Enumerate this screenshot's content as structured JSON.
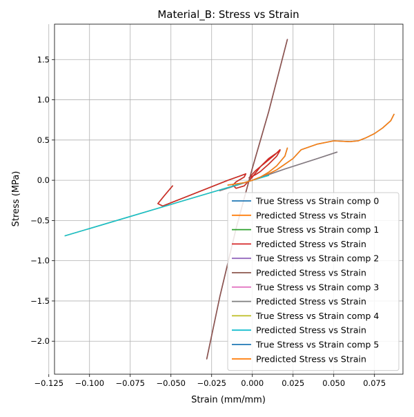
{
  "chart_data": {
    "type": "line",
    "title": "Material_B: Stress vs Strain",
    "xlabel": "Strain (mm/mm)",
    "ylabel": "Stress (MPa)",
    "xlim": [
      -0.1215,
      0.0925
    ],
    "ylim": [
      -2.41,
      1.94
    ],
    "xticks": [
      -0.125,
      -0.1,
      -0.075,
      -0.05,
      -0.025,
      0.0,
      0.025,
      0.05,
      0.075
    ],
    "xtick_labels": [
      "−0.125",
      "−0.100",
      "−0.075",
      "−0.050",
      "−0.025",
      "0.000",
      "0.025",
      "0.050",
      "0.075"
    ],
    "yticks": [
      -2.0,
      -1.5,
      -1.0,
      -0.5,
      0.0,
      0.5,
      1.0,
      1.5
    ],
    "ytick_labels": [
      "−2.0",
      "−1.5",
      "−1.0",
      "−0.5",
      "0.0",
      "0.5",
      "1.0",
      "1.5"
    ],
    "grid": true,
    "legend_position": "lower-right",
    "series": [
      {
        "name": "True Stress vs Strain comp 0",
        "color": "#1f77b4",
        "x": [
          0.0,
          0.005,
          0.01,
          0.015,
          0.02,
          0.025,
          0.03,
          0.04,
          0.05,
          0.06,
          0.065,
          0.07,
          0.075,
          0.08,
          0.085,
          0.087
        ],
        "y": [
          0.0,
          0.04,
          0.08,
          0.13,
          0.2,
          0.27,
          0.38,
          0.45,
          0.49,
          0.48,
          0.49,
          0.53,
          0.58,
          0.65,
          0.74,
          0.82
        ]
      },
      {
        "name": "Predicted Stress vs Strain",
        "color": "#ff7f0e",
        "x": [
          0.0,
          0.005,
          0.01,
          0.015,
          0.02,
          0.025,
          0.03,
          0.04,
          0.05,
          0.06,
          0.065,
          0.07,
          0.075,
          0.08,
          0.085,
          0.087
        ],
        "y": [
          0.0,
          0.04,
          0.08,
          0.13,
          0.2,
          0.27,
          0.38,
          0.45,
          0.49,
          0.48,
          0.49,
          0.53,
          0.58,
          0.65,
          0.74,
          0.82
        ]
      },
      {
        "name": "True Stress vs Strain comp 1",
        "color": "#2ca02c",
        "x": [
          -0.049,
          -0.054,
          -0.058,
          -0.055,
          -0.045,
          -0.03,
          -0.015,
          -0.008,
          -0.004,
          -0.005,
          -0.01,
          -0.012,
          -0.01,
          -0.005,
          0.0,
          0.005,
          0.01,
          0.015,
          0.017,
          0.015,
          0.01,
          0.005,
          0.002,
          0.0,
          -0.002,
          0.002,
          0.008,
          0.014,
          0.017
        ],
        "y": [
          -0.07,
          -0.19,
          -0.29,
          -0.32,
          -0.24,
          -0.12,
          0.0,
          0.05,
          0.08,
          0.04,
          -0.02,
          -0.06,
          -0.1,
          -0.07,
          0.04,
          0.17,
          0.27,
          0.34,
          0.37,
          0.3,
          0.2,
          0.11,
          0.07,
          0.05,
          0.03,
          0.12,
          0.22,
          0.32,
          0.38
        ]
      },
      {
        "name": "Predicted Stress vs Strain",
        "color": "#d62728",
        "x": [
          -0.049,
          -0.054,
          -0.058,
          -0.055,
          -0.045,
          -0.03,
          -0.015,
          -0.008,
          -0.004,
          -0.005,
          -0.01,
          -0.012,
          -0.01,
          -0.005,
          0.0,
          0.005,
          0.01,
          0.015,
          0.017,
          0.015,
          0.01,
          0.005,
          0.002,
          0.0,
          -0.002,
          0.002,
          0.008,
          0.014,
          0.017
        ],
        "y": [
          -0.07,
          -0.19,
          -0.29,
          -0.32,
          -0.24,
          -0.12,
          0.0,
          0.05,
          0.08,
          0.04,
          -0.02,
          -0.06,
          -0.1,
          -0.07,
          0.04,
          0.17,
          0.27,
          0.34,
          0.37,
          0.3,
          0.2,
          0.11,
          0.07,
          0.05,
          0.03,
          0.12,
          0.22,
          0.32,
          0.38
        ]
      },
      {
        "name": "True Stress vs Strain comp 2",
        "color": "#9467bd",
        "x": [
          -0.028,
          -0.02,
          -0.01,
          0.0,
          0.01,
          0.0215
        ],
        "y": [
          -2.22,
          -1.45,
          -0.6,
          0.15,
          0.85,
          1.75
        ]
      },
      {
        "name": "Predicted Stress vs Strain",
        "color": "#8c564b",
        "x": [
          -0.028,
          -0.02,
          -0.01,
          0.0,
          0.01,
          0.0215
        ],
        "y": [
          -2.22,
          -1.45,
          -0.6,
          0.15,
          0.85,
          1.75
        ]
      },
      {
        "name": "True Stress vs Strain comp 3",
        "color": "#e377c2",
        "x": [
          -0.02,
          0.0,
          0.02,
          0.04,
          0.052
        ],
        "y": [
          -0.13,
          0.0,
          0.14,
          0.27,
          0.35
        ]
      },
      {
        "name": "Predicted Stress vs Strain",
        "color": "#7f7f7f",
        "x": [
          -0.02,
          0.0,
          0.02,
          0.04,
          0.052
        ],
        "y": [
          -0.13,
          0.0,
          0.14,
          0.27,
          0.35
        ]
      },
      {
        "name": "True Stress vs Strain comp 4",
        "color": "#bcbd22",
        "x": [
          -0.115,
          -0.08,
          -0.05,
          -0.02,
          0.0,
          0.01
        ],
        "y": [
          -0.69,
          -0.48,
          -0.3,
          -0.12,
          0.0,
          0.06
        ]
      },
      {
        "name": "Predicted Stress vs Strain",
        "color": "#17becf",
        "x": [
          -0.115,
          -0.08,
          -0.05,
          -0.02,
          0.0,
          0.01
        ],
        "y": [
          -0.69,
          -0.48,
          -0.3,
          -0.12,
          0.0,
          0.06
        ]
      },
      {
        "name": "True Stress vs Strain comp 5",
        "color": "#1f77b4",
        "x": [
          -0.015,
          -0.005,
          0.0,
          0.005,
          0.01,
          0.015,
          0.02,
          0.0215
        ],
        "y": [
          -0.06,
          -0.03,
          0.0,
          0.04,
          0.1,
          0.18,
          0.3,
          0.4
        ]
      },
      {
        "name": "Predicted Stress vs Strain",
        "color": "#ff7f0e",
        "x": [
          -0.015,
          -0.005,
          0.0,
          0.005,
          0.01,
          0.015,
          0.02,
          0.0215
        ],
        "y": [
          -0.06,
          -0.03,
          0.0,
          0.04,
          0.1,
          0.18,
          0.3,
          0.4
        ]
      }
    ]
  }
}
